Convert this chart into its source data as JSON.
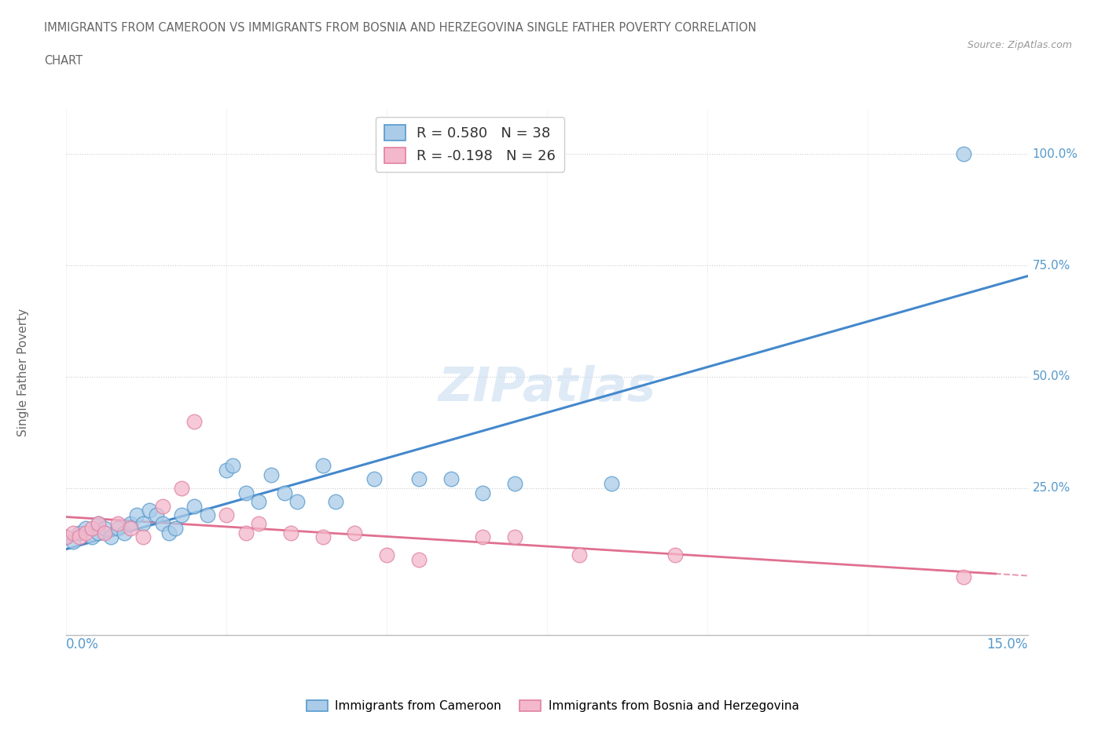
{
  "title_line1": "IMMIGRANTS FROM CAMEROON VS IMMIGRANTS FROM BOSNIA AND HERZEGOVINA SINGLE FATHER POVERTY CORRELATION",
  "title_line2": "CHART",
  "source": "Source: ZipAtlas.com",
  "ylabel": "Single Father Poverty",
  "xlim": [
    0.0,
    0.15
  ],
  "ylim": [
    -0.08,
    1.1
  ],
  "watermark": "ZIPatlas",
  "legend_label_cam": "R = 0.580   N = 38",
  "legend_label_bos": "R = -0.198   N = 26",
  "cameroon_x": [
    0.0,
    0.001,
    0.002,
    0.003,
    0.004,
    0.005,
    0.005,
    0.006,
    0.007,
    0.008,
    0.009,
    0.01,
    0.011,
    0.012,
    0.013,
    0.014,
    0.015,
    0.016,
    0.017,
    0.018,
    0.02,
    0.022,
    0.025,
    0.026,
    0.028,
    0.03,
    0.032,
    0.034,
    0.036,
    0.04,
    0.042,
    0.048,
    0.055,
    0.06,
    0.065,
    0.07,
    0.085,
    0.14
  ],
  "cameroon_y": [
    0.14,
    0.13,
    0.15,
    0.16,
    0.14,
    0.15,
    0.17,
    0.16,
    0.14,
    0.16,
    0.15,
    0.17,
    0.19,
    0.17,
    0.2,
    0.19,
    0.17,
    0.15,
    0.16,
    0.19,
    0.21,
    0.19,
    0.29,
    0.3,
    0.24,
    0.22,
    0.28,
    0.24,
    0.22,
    0.3,
    0.22,
    0.27,
    0.27,
    0.27,
    0.24,
    0.26,
    0.26,
    1.0
  ],
  "bosnia_x": [
    0.0,
    0.001,
    0.002,
    0.003,
    0.004,
    0.005,
    0.006,
    0.008,
    0.01,
    0.012,
    0.015,
    0.018,
    0.02,
    0.025,
    0.028,
    0.03,
    0.035,
    0.04,
    0.045,
    0.05,
    0.055,
    0.065,
    0.07,
    0.08,
    0.095,
    0.14
  ],
  "bosnia_y": [
    0.14,
    0.15,
    0.14,
    0.15,
    0.16,
    0.17,
    0.15,
    0.17,
    0.16,
    0.14,
    0.21,
    0.25,
    0.4,
    0.19,
    0.15,
    0.17,
    0.15,
    0.14,
    0.15,
    0.1,
    0.09,
    0.14,
    0.14,
    0.1,
    0.1,
    0.05
  ],
  "cameroon_color": "#aacce8",
  "bosnia_color": "#f4b8cc",
  "cameroon_edge_color": "#5599cc",
  "bosnia_edge_color": "#e080a0",
  "cameroon_trend_color": "#4488cc",
  "bosnia_trend_color": "#e07090",
  "background_color": "#ffffff",
  "grid_color": "#cccccc",
  "title_color": "#666666",
  "axis_label_color": "#5599cc",
  "ytick_labels": [
    "25.0%",
    "50.0%",
    "75.0%",
    "100.0%"
  ],
  "ytick_values": [
    0.25,
    0.5,
    0.75,
    1.0
  ],
  "bottom_legend_cam": "Immigrants from Cameroon",
  "bottom_legend_bos": "Immigrants from Bosnia and Herzegovina"
}
